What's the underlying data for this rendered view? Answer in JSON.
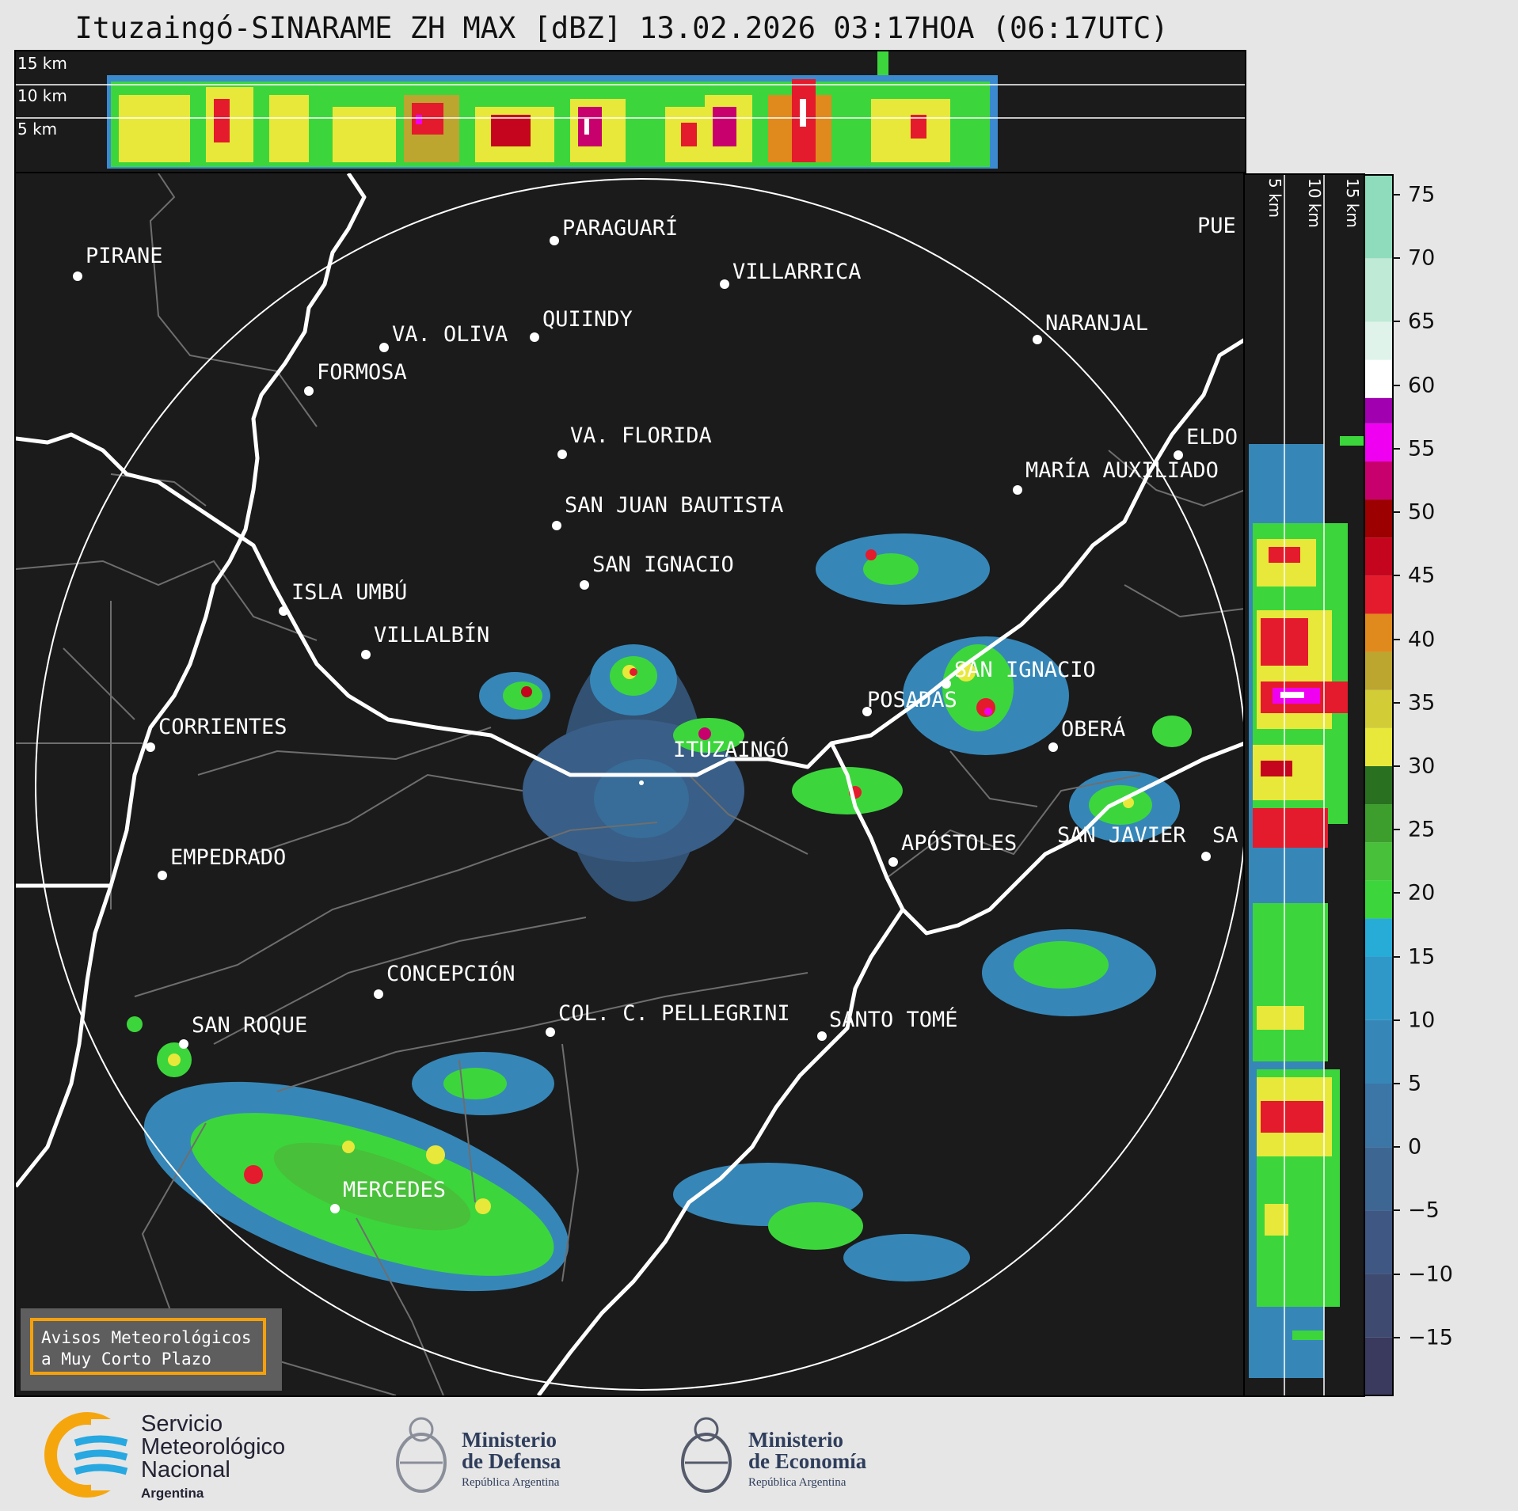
{
  "title": "Ituzaingó-SINARAME ZH MAX [dBZ] 13.02.2026 03:17HOA (06:17UTC)",
  "profiles": {
    "top_labels": [
      "15 km",
      "10 km",
      "5 km"
    ],
    "side_labels": [
      "5 km",
      "10 km",
      "15 km"
    ]
  },
  "map": {
    "radar_site": "ITUZAINGÓ",
    "places": [
      {
        "name": "PARAGUARÍ"
      },
      {
        "name": "VILLARRICA"
      },
      {
        "name": "PIRANE"
      },
      {
        "name": "QUIINDY"
      },
      {
        "name": "VA. OLIVA"
      },
      {
        "name": "NARANJAL"
      },
      {
        "name": "FORMOSA"
      },
      {
        "name": "PUE"
      },
      {
        "name": "VA. FLORIDA"
      },
      {
        "name": "ELDO"
      },
      {
        "name": "MARÍA AUXILIADO"
      },
      {
        "name": "SAN JUAN BAUTISTA"
      },
      {
        "name": "SAN IGNACIO"
      },
      {
        "name": "ISLA UMBÚ"
      },
      {
        "name": "VILLALBÍN"
      },
      {
        "name": "SAN IGNACIO"
      },
      {
        "name": "POSADAS"
      },
      {
        "name": "OBERÁ"
      },
      {
        "name": "CORRIENTES"
      },
      {
        "name": "ITUZAINGÓ"
      },
      {
        "name": "EMPEDRADO"
      },
      {
        "name": "APÓSTOLES"
      },
      {
        "name": "SAN JAVIER"
      },
      {
        "name": "SA"
      },
      {
        "name": "CONCEPCIÓN"
      },
      {
        "name": "COL. C. PELLEGRINI"
      },
      {
        "name": "SANTO TOMÉ"
      },
      {
        "name": "SAN ROQUE"
      },
      {
        "name": "MERCEDES"
      }
    ]
  },
  "colorbar": {
    "ticks": [
      "75",
      "70",
      "65",
      "60",
      "55",
      "50",
      "45",
      "40",
      "35",
      "30",
      "25",
      "20",
      "15",
      "10",
      "5",
      "0",
      "−5",
      "−10",
      "−15"
    ],
    "tick_values": [
      75,
      70,
      65,
      60,
      55,
      50,
      45,
      40,
      35,
      30,
      25,
      20,
      15,
      10,
      5,
      0,
      -5,
      -10,
      -15
    ],
    "range": [
      -19.5,
      76.5
    ],
    "unit": "dBZ",
    "stops": [
      {
        "from": -19.5,
        "to": -15,
        "color": "#3a3a5e"
      },
      {
        "from": -15,
        "to": -10,
        "color": "#3e4a70"
      },
      {
        "from": -10,
        "to": -5,
        "color": "#3e5783"
      },
      {
        "from": -5,
        "to": 0,
        "color": "#3d6693"
      },
      {
        "from": 0,
        "to": 5,
        "color": "#3b76a6"
      },
      {
        "from": 5,
        "to": 10,
        "color": "#3687b8"
      },
      {
        "from": 10,
        "to": 15,
        "color": "#2f98c8"
      },
      {
        "from": 15,
        "to": 18,
        "color": "#27acd8"
      },
      {
        "from": 18,
        "to": 21,
        "color": "#3cd63c"
      },
      {
        "from": 21,
        "to": 24,
        "color": "#48c03a"
      },
      {
        "from": 24,
        "to": 27,
        "color": "#3d9e2e"
      },
      {
        "from": 27,
        "to": 30,
        "color": "#2a7021"
      },
      {
        "from": 30,
        "to": 33,
        "color": "#e8e83a"
      },
      {
        "from": 33,
        "to": 36,
        "color": "#d2cc37"
      },
      {
        "from": 36,
        "to": 39,
        "color": "#bca630"
      },
      {
        "from": 39,
        "to": 42,
        "color": "#e08a1e"
      },
      {
        "from": 42,
        "to": 45,
        "color": "#e41b2c"
      },
      {
        "from": 45,
        "to": 48,
        "color": "#c4051d"
      },
      {
        "from": 48,
        "to": 51,
        "color": "#9c0000"
      },
      {
        "from": 51,
        "to": 54,
        "color": "#c8006e"
      },
      {
        "from": 54,
        "to": 57,
        "color": "#f000f0"
      },
      {
        "from": 57,
        "to": 59,
        "color": "#a000b0"
      },
      {
        "from": 59,
        "to": 62,
        "color": "#ffffff"
      },
      {
        "from": 62,
        "to": 65,
        "color": "#dff3ea"
      },
      {
        "from": 65,
        "to": 70,
        "color": "#bfead6"
      },
      {
        "from": 70,
        "to": 76.5,
        "color": "#8fdcbc"
      }
    ]
  },
  "alert": {
    "line1": "Avisos Meteorológicos",
    "line2": "a Muy Corto Plazo"
  },
  "footer": {
    "smn": {
      "line1": "Servicio",
      "line2": "Meteorológico",
      "line3": "Nacional",
      "line4": "Argentina"
    },
    "defensa": {
      "line1": "Ministerio",
      "line2": "de Defensa",
      "line3": "República Argentina"
    },
    "economia": {
      "line1": "Ministerio",
      "line2": "de Economía",
      "line3": "República Argentina"
    }
  }
}
